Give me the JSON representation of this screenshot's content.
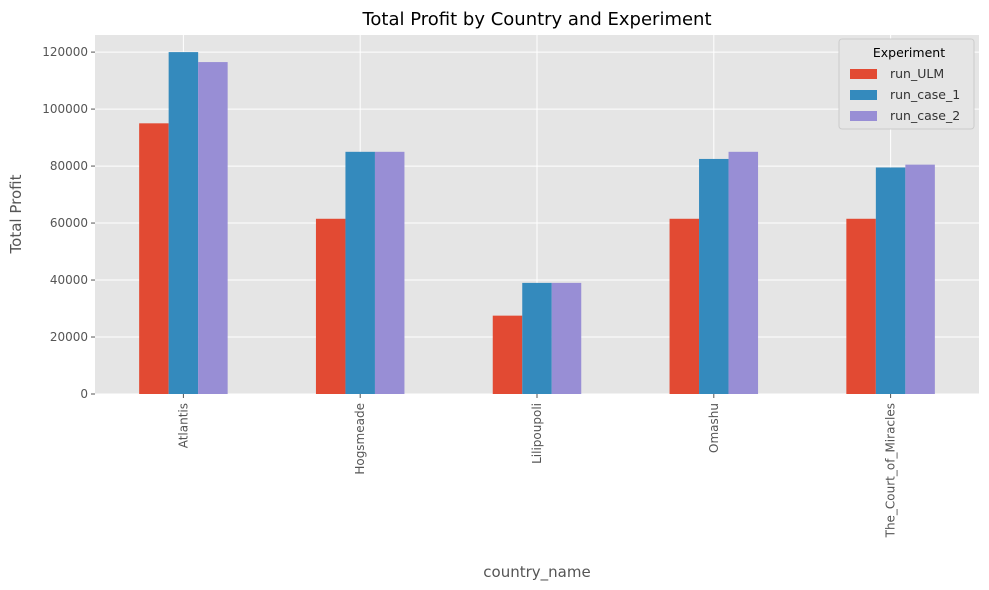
{
  "chart_data": {
    "type": "bar",
    "title": "Total Profit by Country and Experiment",
    "xlabel": "country_name",
    "ylabel": "Total Profit",
    "categories": [
      "Atlantis",
      "Hogsmeade",
      "Lilipoupoli",
      "Omashu",
      "The_Court_of_Miracles"
    ],
    "series": [
      {
        "name": "run_ULM",
        "color": "#E24A33",
        "values": [
          95000,
          61500,
          27500,
          61500,
          61500
        ]
      },
      {
        "name": "run_case_1",
        "color": "#348ABD",
        "values": [
          120000,
          85000,
          39000,
          82500,
          79500
        ]
      },
      {
        "name": "run_case_2",
        "color": "#988ED5",
        "values": [
          116500,
          85000,
          39000,
          85000,
          80500
        ]
      }
    ],
    "ylim": [
      0,
      126000
    ],
    "yticks": [
      "0",
      "20000",
      "40000",
      "60000",
      "80000",
      "100000",
      "120000"
    ],
    "grid": true,
    "legend": {
      "title": "Experiment",
      "position": "top-right"
    },
    "background_color": "#E5E5E5"
  }
}
